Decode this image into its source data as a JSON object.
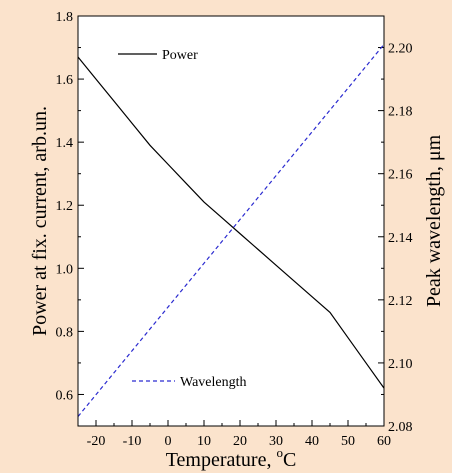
{
  "chart_data": {
    "type": "line",
    "xlabel": "Temperature, °C",
    "xlabel_main": "Temperature, ",
    "xlabel_degree": "o",
    "xlabel_unit": "C",
    "ylabel_left": "Power at fix. current, arb.un.",
    "ylabel_right": "Peak wavelength, μm",
    "xlim": [
      -25,
      60
    ],
    "ylim_left": [
      0.5,
      1.8
    ],
    "ylim_right": [
      2.08,
      2.21
    ],
    "x_ticks": [
      -20,
      -10,
      0,
      10,
      20,
      30,
      40,
      50,
      60
    ],
    "x_tick_labels": [
      "-20",
      "-10",
      "0",
      "10",
      "20",
      "30",
      "40",
      "50",
      "60"
    ],
    "y_left_ticks": [
      0.6,
      0.8,
      1.0,
      1.2,
      1.4,
      1.6,
      1.8
    ],
    "y_left_tick_labels": [
      "0.6",
      "0.8",
      "1.0",
      "1.2",
      "1.4",
      "1.6",
      "1.8"
    ],
    "y_right_ticks": [
      2.08,
      2.1,
      2.12,
      2.14,
      2.16,
      2.18,
      2.2
    ],
    "y_right_tick_labels": [
      "2.08",
      "2.10",
      "2.12",
      "2.14",
      "2.16",
      "2.18",
      "2.20"
    ],
    "grid": false,
    "series": [
      {
        "name": "Power",
        "axis": "left",
        "style": "solid",
        "color": "#000000",
        "x": [
          -25,
          -20,
          -15,
          -10,
          -5,
          0,
          5,
          10,
          15,
          20,
          25,
          30,
          35,
          40,
          45,
          50,
          55,
          60
        ],
        "y": [
          1.67,
          1.6,
          1.53,
          1.46,
          1.39,
          1.33,
          1.27,
          1.21,
          1.16,
          1.11,
          1.06,
          1.01,
          0.96,
          0.91,
          0.86,
          0.78,
          0.7,
          0.62
        ]
      },
      {
        "name": "Wavelength",
        "axis": "right",
        "style": "dashed",
        "color": "#2b2bd0",
        "x": [
          -25,
          60
        ],
        "y": [
          2.083,
          2.201
        ]
      }
    ]
  }
}
